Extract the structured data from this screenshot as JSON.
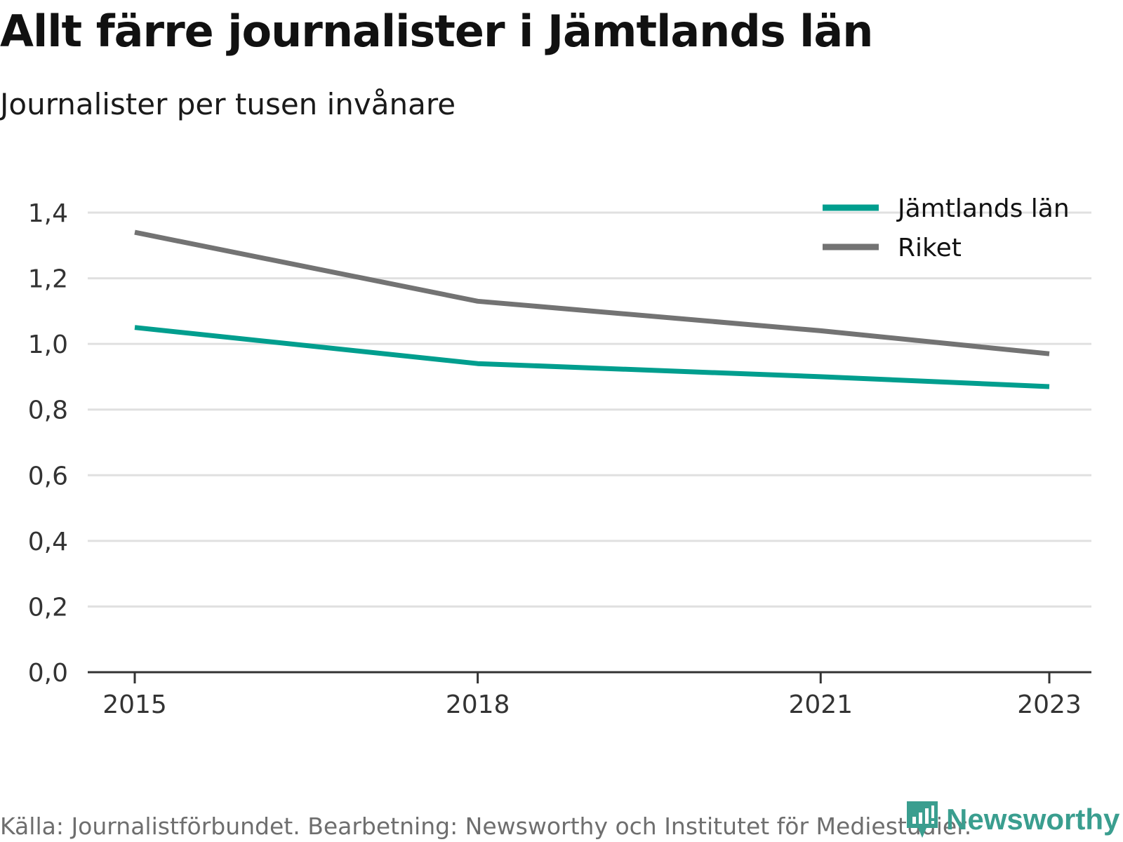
{
  "title": "Allt färre journalister i Jämtlands län",
  "subtitle": "Journalister per tusen invånare",
  "source": "Källa: Journalistförbundet. Bearbetning: Newsworthy och Institutet för Mediestudier.",
  "brand": "Newsworthy",
  "colors": {
    "jamtland": "#009e8e",
    "riket": "#737373",
    "grid": "#e0e0e0",
    "axis": "#333333",
    "brand": "#3a9e8f"
  },
  "chart_data": {
    "type": "line",
    "x": [
      2015,
      2018,
      2021,
      2023
    ],
    "x_tick_labels": [
      "2015",
      "2018",
      "2021",
      "2023"
    ],
    "y_tick_labels": [
      "0,0",
      "0,2",
      "0,4",
      "0,6",
      "0,8",
      "1,0",
      "1,2",
      "1,4"
    ],
    "ylim": [
      0,
      1.4
    ],
    "grid": true,
    "legend_position": "top-right",
    "series": [
      {
        "name": "Jämtlands län",
        "color": "#009e8e",
        "points": [
          [
            2015,
            1.05
          ],
          [
            2018,
            0.94
          ],
          [
            2021,
            0.9
          ],
          [
            2023,
            0.87
          ]
        ]
      },
      {
        "name": "Riket",
        "color": "#737373",
        "points": [
          [
            2015,
            1.34
          ],
          [
            2018,
            1.13
          ],
          [
            2021,
            1.04
          ],
          [
            2023,
            0.97
          ]
        ]
      }
    ]
  }
}
